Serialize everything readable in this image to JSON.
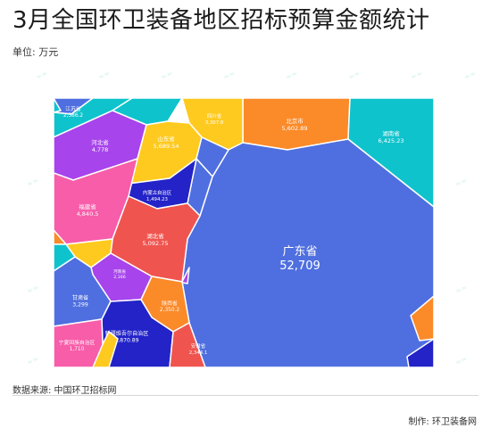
{
  "title": "3月全国环卫装备地区招标预算金额统计",
  "unit_label": "单位: 万元",
  "source": "数据来源: 中国环卫招标网",
  "credit": "制作: 环卫装备网",
  "chart_data": {
    "type": "treemap",
    "title": "3月全国环卫装备地区招标预算金额统计",
    "unit": "万元",
    "categories": [
      "广东省",
      "湖南省",
      "山东省",
      "北京市",
      "湖北省",
      "福建省",
      "河北省",
      "新疆维吾尔自治区",
      "甘肃省",
      "四川省",
      "陕西省",
      "安徽省",
      "江苏省",
      "河南省",
      "宁夏回族自治区",
      "内蒙古自治区"
    ],
    "values": [
      52709,
      6425.23,
      5689.54,
      5602.89,
      5092.75,
      4840.5,
      4778,
      3870.89,
      3299,
      3307.8,
      2350.2,
      2344.1,
      2386.2,
      2166,
      1710,
      1494.23
    ],
    "labels": [
      "广东省",
      "湖南省",
      "山东省",
      "北京市",
      "湖北省",
      "福建省",
      "河北省",
      "新疆维吾尔自治区",
      "甘肃省",
      "四川省",
      "陕西省",
      "安徽省",
      "江苏省",
      "河南省",
      "宁夏回族自治区",
      "内蒙古自治区"
    ],
    "value_labels": [
      "52,709",
      "6,425.23",
      "5,689.54",
      "5,602.89",
      "5,092.75",
      "4,840.5",
      "4,778",
      "3,870.89",
      "3,299",
      "3,307.8",
      "2,350.2",
      "2,344.1",
      "2,386.2",
      "2,166",
      "1,710",
      "1,494.23"
    ],
    "colors": {
      "blue": "#4f6fe0",
      "teal": "#0fc3cc",
      "yellow": "#ffca1f",
      "orange": "#fb8a29",
      "red": "#f0544f",
      "pink": "#f75da9",
      "purple": "#a744ec",
      "navy": "#2323c8"
    }
  }
}
